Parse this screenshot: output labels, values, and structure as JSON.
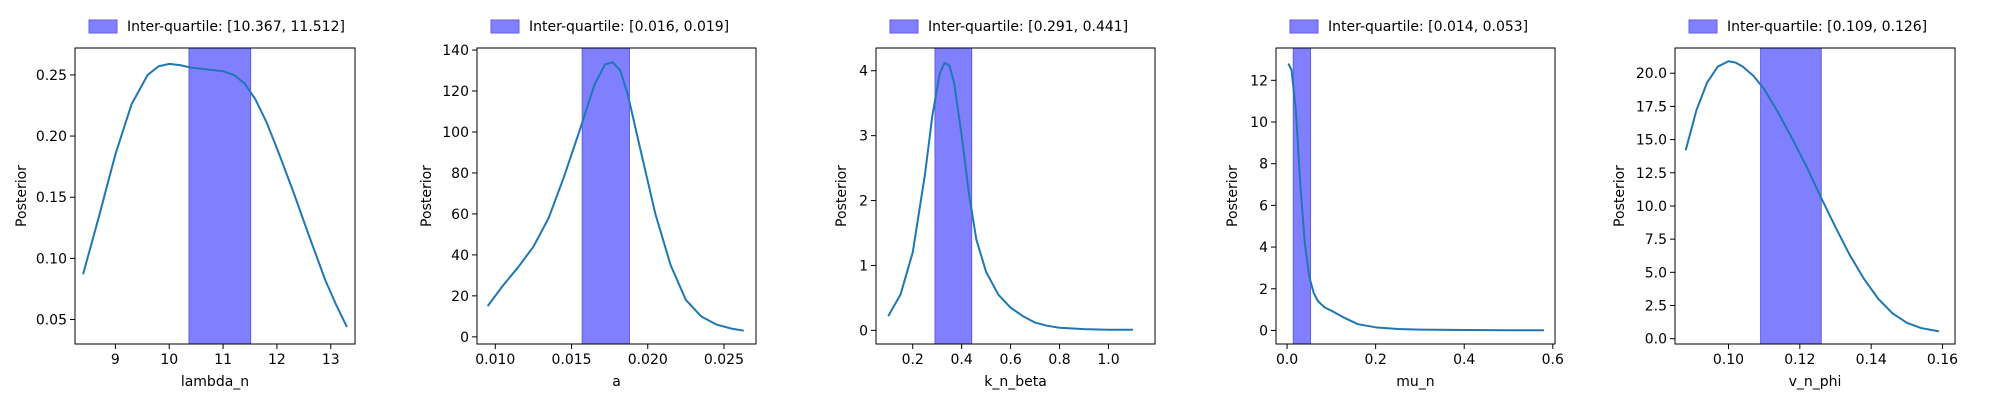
{
  "chart_data": [
    {
      "type": "line",
      "title": "",
      "xlabel": "lambda_n",
      "ylabel": "Posterior",
      "xlim": [
        8.25,
        13.45
      ],
      "ylim": [
        0.03,
        0.272
      ],
      "xticks": [
        9,
        10,
        11,
        12,
        13
      ],
      "xtick_labels": [
        "9",
        "10",
        "11",
        "12",
        "13"
      ],
      "yticks": [
        0.05,
        0.1,
        0.15,
        0.2,
        0.25
      ],
      "ytick_labels": [
        "0.05",
        "0.10",
        "0.15",
        "0.20",
        "0.25"
      ],
      "band": [
        10.367,
        11.512
      ],
      "legend_label": "Inter-quartile: [10.367, 11.512]",
      "legend_position": "above-left",
      "grid": false,
      "line_color": "#1f77b4",
      "band_color": "#8080ff",
      "series": [
        {
          "x": [
            8.4,
            8.7,
            9.0,
            9.3,
            9.6,
            9.8,
            10.0,
            10.2,
            10.4,
            10.6,
            10.8,
            11.0,
            11.2,
            11.4,
            11.6,
            11.8,
            12.0,
            12.3,
            12.6,
            12.9,
            13.1,
            13.3
          ],
          "y": [
            0.087,
            0.135,
            0.185,
            0.226,
            0.25,
            0.257,
            0.259,
            0.258,
            0.256,
            0.255,
            0.254,
            0.253,
            0.25,
            0.243,
            0.23,
            0.212,
            0.19,
            0.155,
            0.118,
            0.082,
            0.062,
            0.044
          ]
        }
      ]
    },
    {
      "type": "line",
      "title": "",
      "xlabel": "a",
      "ylabel": "Posterior",
      "xlim": [
        0.0088,
        0.0271
      ],
      "ylim": [
        -3.5,
        141
      ],
      "xticks": [
        0.01,
        0.015,
        0.02,
        0.025
      ],
      "xtick_labels": [
        "0.010",
        "0.015",
        "0.020",
        "0.025"
      ],
      "yticks": [
        0,
        20,
        40,
        60,
        80,
        100,
        120,
        140
      ],
      "ytick_labels": [
        "0",
        "20",
        "40",
        "60",
        "80",
        "100",
        "120",
        "140"
      ],
      "band": [
        0.0157,
        0.0188
      ],
      "legend_label": "Inter-quartile: [0.016, 0.019]",
      "legend_position": "above-left",
      "grid": false,
      "line_color": "#1f77b4",
      "band_color": "#8080ff",
      "series": [
        {
          "x": [
            0.0095,
            0.0105,
            0.0115,
            0.0125,
            0.0135,
            0.0145,
            0.0155,
            0.0165,
            0.0172,
            0.0177,
            0.0182,
            0.0187,
            0.0195,
            0.0205,
            0.0215,
            0.0225,
            0.0235,
            0.0245,
            0.0255,
            0.0263
          ],
          "y": [
            15,
            25,
            34,
            44,
            58,
            78,
            100,
            123,
            133,
            134,
            130,
            118,
            92,
            60,
            35,
            18,
            10,
            6,
            4,
            3
          ]
        }
      ]
    },
    {
      "type": "line",
      "title": "",
      "xlabel": "k_n_beta",
      "ylabel": "Posterior",
      "xlim": [
        0.05,
        1.19
      ],
      "ylim": [
        -0.21,
        4.35
      ],
      "xticks": [
        0.2,
        0.4,
        0.6,
        0.8,
        1.0
      ],
      "xtick_labels": [
        "0.2",
        "0.4",
        "0.6",
        "0.8",
        "1.0"
      ],
      "yticks": [
        0,
        1,
        2,
        3,
        4
      ],
      "ytick_labels": [
        "0",
        "1",
        "2",
        "3",
        "4"
      ],
      "band": [
        0.291,
        0.441
      ],
      "legend_label": "Inter-quartile: [0.291, 0.441]",
      "legend_position": "above-left",
      "grid": false,
      "line_color": "#1f77b4",
      "band_color": "#8080ff",
      "series": [
        {
          "x": [
            0.1,
            0.15,
            0.2,
            0.25,
            0.28,
            0.31,
            0.33,
            0.35,
            0.37,
            0.4,
            0.43,
            0.46,
            0.5,
            0.55,
            0.6,
            0.65,
            0.7,
            0.75,
            0.8,
            0.9,
            1.0,
            1.1
          ],
          "y": [
            0.22,
            0.55,
            1.2,
            2.4,
            3.3,
            3.95,
            4.12,
            4.08,
            3.8,
            3.0,
            2.1,
            1.4,
            0.9,
            0.55,
            0.35,
            0.22,
            0.12,
            0.07,
            0.04,
            0.02,
            0.01,
            0.01
          ]
        }
      ]
    },
    {
      "type": "line",
      "title": "",
      "xlabel": "mu_n",
      "ylabel": "Posterior",
      "xlim": [
        -0.025,
        0.605
      ],
      "ylim": [
        -0.65,
        13.55
      ],
      "xticks": [
        0.0,
        0.2,
        0.4,
        0.6
      ],
      "xtick_labels": [
        "0.0",
        "0.2",
        "0.4",
        "0.6"
      ],
      "yticks": [
        0,
        2,
        4,
        6,
        8,
        10,
        12
      ],
      "ytick_labels": [
        "0",
        "2",
        "4",
        "6",
        "8",
        "10",
        "12"
      ],
      "band": [
        0.014,
        0.053
      ],
      "legend_label": "Inter-quartile: [0.014, 0.053]",
      "legend_position": "above-left",
      "grid": false,
      "line_color": "#1f77b4",
      "band_color": "#8080ff",
      "series": [
        {
          "x": [
            0.003,
            0.01,
            0.02,
            0.03,
            0.04,
            0.05,
            0.06,
            0.07,
            0.085,
            0.1,
            0.13,
            0.16,
            0.2,
            0.25,
            0.3,
            0.4,
            0.5,
            0.58
          ],
          "y": [
            12.8,
            12.5,
            10.5,
            7.0,
            4.2,
            2.6,
            1.8,
            1.4,
            1.1,
            0.95,
            0.6,
            0.3,
            0.15,
            0.07,
            0.04,
            0.02,
            0.01,
            0.01
          ]
        }
      ]
    },
    {
      "type": "line",
      "title": "",
      "xlabel": "v_n_phi",
      "ylabel": "Posterior",
      "xlim": [
        0.085,
        0.1635
      ],
      "ylim": [
        -0.4,
        21.9
      ],
      "xticks": [
        0.1,
        0.12,
        0.14,
        0.16
      ],
      "xtick_labels": [
        "0.10",
        "0.12",
        "0.14",
        "0.16"
      ],
      "yticks": [
        0.0,
        2.5,
        5.0,
        7.5,
        10.0,
        12.5,
        15.0,
        17.5,
        20.0
      ],
      "ytick_labels": [
        "0.0",
        "2.5",
        "5.0",
        "7.5",
        "10.0",
        "12.5",
        "15.0",
        "17.5",
        "20.0"
      ],
      "band": [
        0.109,
        0.126
      ],
      "legend_label": "Inter-quartile: [0.109, 0.126]",
      "legend_position": "above-left",
      "grid": false,
      "line_color": "#1f77b4",
      "band_color": "#8080ff",
      "series": [
        {
          "x": [
            0.088,
            0.091,
            0.094,
            0.097,
            0.1,
            0.102,
            0.104,
            0.107,
            0.11,
            0.114,
            0.118,
            0.122,
            0.126,
            0.13,
            0.134,
            0.138,
            0.142,
            0.146,
            0.15,
            0.154,
            0.159
          ],
          "y": [
            14.2,
            17.2,
            19.3,
            20.5,
            20.9,
            20.8,
            20.5,
            19.8,
            18.8,
            17.0,
            15.0,
            12.9,
            10.6,
            8.4,
            6.3,
            4.5,
            3.0,
            1.9,
            1.2,
            0.8,
            0.55
          ]
        }
      ]
    }
  ]
}
